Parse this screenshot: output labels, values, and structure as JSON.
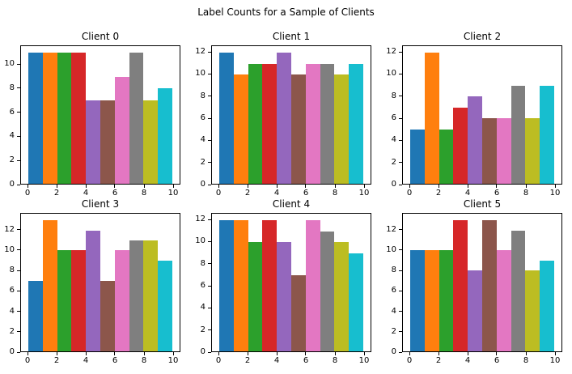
{
  "figure": {
    "suptitle": "Label Counts for a Sample of Clients",
    "background": "#ffffff",
    "text_color": "#000000"
  },
  "palette": [
    "#1f77b4",
    "#ff7f0e",
    "#2ca02c",
    "#d62728",
    "#9467bd",
    "#8c564b",
    "#e377c2",
    "#7f7f7f",
    "#bcbd22",
    "#17becf"
  ],
  "chart_data": [
    {
      "type": "bar",
      "title": "Client 0",
      "x": [
        0,
        1,
        2,
        3,
        4,
        5,
        6,
        7,
        8,
        9
      ],
      "bar_width": 1,
      "align": "edge",
      "values": [
        11,
        11,
        11,
        11,
        7,
        7,
        9,
        11,
        7,
        8
      ],
      "xticks": [
        0,
        2,
        4,
        6,
        8,
        10
      ],
      "yticks": [
        0,
        2,
        4,
        6,
        8,
        10
      ],
      "xlim": [
        -0.5,
        10.5
      ],
      "ylim": [
        0,
        11.55
      ],
      "grid": false,
      "legend": null
    },
    {
      "type": "bar",
      "title": "Client 1",
      "x": [
        0,
        1,
        2,
        3,
        4,
        5,
        6,
        7,
        8,
        9
      ],
      "bar_width": 1,
      "align": "edge",
      "values": [
        12,
        10,
        11,
        11,
        12,
        10,
        11,
        11,
        10,
        11
      ],
      "xticks": [
        0,
        2,
        4,
        6,
        8,
        10
      ],
      "yticks": [
        0,
        2,
        4,
        6,
        8,
        10,
        12
      ],
      "xlim": [
        -0.5,
        10.5
      ],
      "ylim": [
        0,
        12.6
      ],
      "grid": false,
      "legend": null
    },
    {
      "type": "bar",
      "title": "Client 2",
      "x": [
        0,
        1,
        2,
        3,
        4,
        5,
        6,
        7,
        8,
        9
      ],
      "bar_width": 1,
      "align": "edge",
      "values": [
        5,
        12,
        5,
        7,
        8,
        6,
        6,
        9,
        6,
        9
      ],
      "xticks": [
        0,
        2,
        4,
        6,
        8,
        10
      ],
      "yticks": [
        0,
        2,
        4,
        6,
        8,
        10,
        12
      ],
      "xlim": [
        -0.5,
        10.5
      ],
      "ylim": [
        0,
        12.6
      ],
      "grid": false,
      "legend": null
    },
    {
      "type": "bar",
      "title": "Client 3",
      "x": [
        0,
        1,
        2,
        3,
        4,
        5,
        6,
        7,
        8,
        9
      ],
      "bar_width": 1,
      "align": "edge",
      "values": [
        7,
        13,
        10,
        10,
        12,
        7,
        10,
        11,
        11,
        9
      ],
      "xticks": [
        0,
        2,
        4,
        6,
        8,
        10
      ],
      "yticks": [
        0,
        2,
        4,
        6,
        8,
        10,
        12
      ],
      "xlim": [
        -0.5,
        10.5
      ],
      "ylim": [
        0,
        13.65
      ],
      "grid": false,
      "legend": null
    },
    {
      "type": "bar",
      "title": "Client 4",
      "x": [
        0,
        1,
        2,
        3,
        4,
        5,
        6,
        7,
        8,
        9
      ],
      "bar_width": 1,
      "align": "edge",
      "values": [
        12,
        12,
        10,
        12,
        10,
        7,
        12,
        11,
        10,
        9
      ],
      "xticks": [
        0,
        2,
        4,
        6,
        8,
        10
      ],
      "yticks": [
        0,
        2,
        4,
        6,
        8,
        10,
        12
      ],
      "xlim": [
        -0.5,
        10.5
      ],
      "ylim": [
        0,
        12.6
      ],
      "grid": false,
      "legend": null
    },
    {
      "type": "bar",
      "title": "Client 5",
      "x": [
        0,
        1,
        2,
        3,
        4,
        5,
        6,
        7,
        8,
        9
      ],
      "bar_width": 1,
      "align": "edge",
      "values": [
        10,
        10,
        10,
        13,
        8,
        13,
        10,
        12,
        8,
        9
      ],
      "xticks": [
        0,
        2,
        4,
        6,
        8,
        10
      ],
      "yticks": [
        0,
        2,
        4,
        6,
        8,
        10,
        12
      ],
      "xlim": [
        -0.5,
        10.5
      ],
      "ylim": [
        0,
        13.65
      ],
      "grid": false,
      "legend": null
    }
  ]
}
